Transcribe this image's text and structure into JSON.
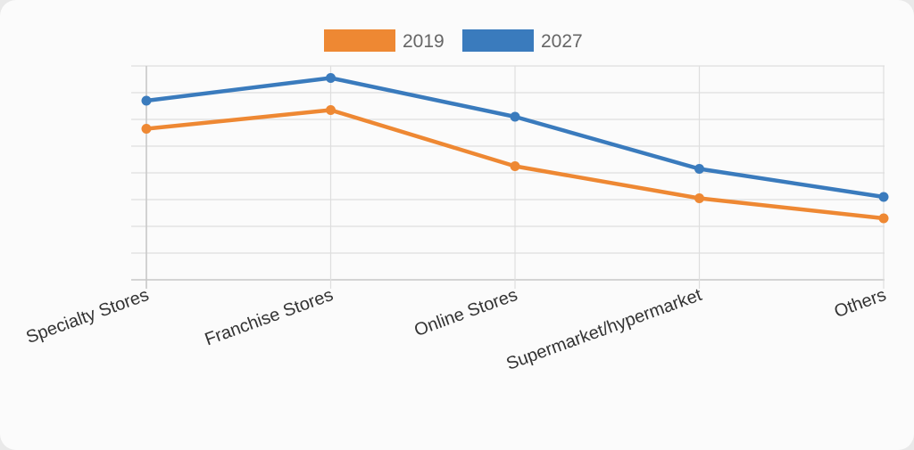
{
  "chart_data": {
    "type": "line",
    "categories": [
      "Specialty Stores",
      "Franchise Stores",
      "Online Stores",
      "Supermarket/hypermarket",
      "Others"
    ],
    "series": [
      {
        "name": "2019",
        "color": "#ee8833",
        "values": [
          5.65,
          6.35,
          4.25,
          3.05,
          2.3
        ]
      },
      {
        "name": "2027",
        "color": "#3a7bbd",
        "values": [
          6.7,
          7.55,
          6.1,
          4.15,
          3.1
        ]
      }
    ],
    "ylim": [
      0,
      8
    ],
    "grid": true,
    "legend": "top"
  }
}
